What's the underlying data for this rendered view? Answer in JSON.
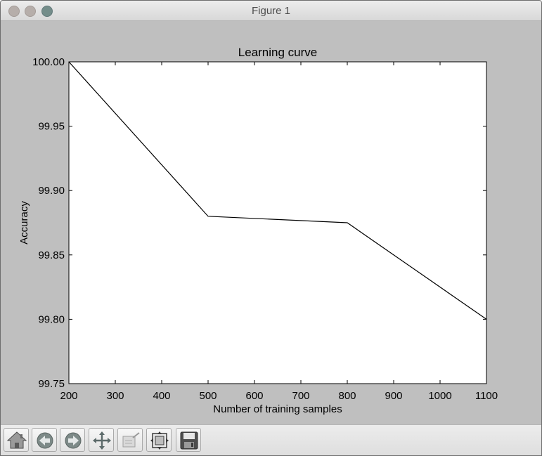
{
  "window": {
    "title": "Figure 1"
  },
  "toolbar": {
    "tools": [
      {
        "name": "home",
        "icon": "home-icon"
      },
      {
        "name": "back",
        "icon": "back-arrow-icon"
      },
      {
        "name": "forward",
        "icon": "forward-arrow-icon"
      },
      {
        "name": "pan",
        "icon": "pan-move-icon"
      },
      {
        "name": "zoom",
        "icon": "zoom-rect-icon"
      },
      {
        "name": "configure-subplots",
        "icon": "subplots-icon"
      },
      {
        "name": "save",
        "icon": "save-floppy-icon"
      }
    ]
  },
  "chart_data": {
    "type": "line",
    "title": "Learning curve",
    "xlabel": "Number of training samples",
    "ylabel": "Accuracy",
    "xlim": [
      200,
      1100
    ],
    "ylim": [
      99.75,
      100.0
    ],
    "xticks": [
      "200",
      "300",
      "400",
      "500",
      "600",
      "700",
      "800",
      "900",
      "1000",
      "1100"
    ],
    "yticks": [
      "99.75",
      "99.80",
      "99.85",
      "99.90",
      "99.95",
      "100.00"
    ],
    "grid": false,
    "line_color": "#000000",
    "series": [
      {
        "x": [
          200,
          500,
          800,
          1100
        ],
        "y": [
          100.0,
          99.88,
          99.875,
          99.8
        ]
      }
    ]
  }
}
